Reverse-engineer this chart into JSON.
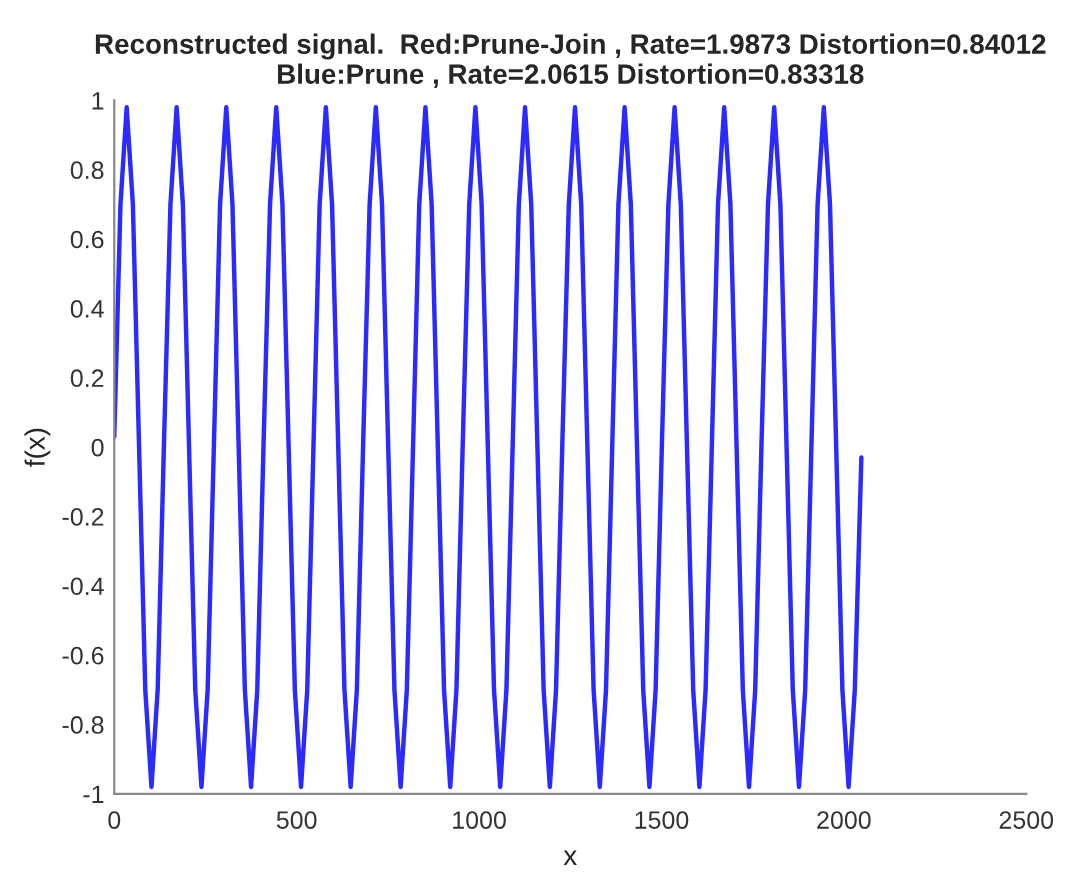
{
  "chart_data": {
    "type": "line",
    "title": "Reconstructed signal.  Red:Prune-Join , Rate=1.9873 Distortion=0.84012\nBlue:Prune , Rate=2.0615 Distortion=0.83318",
    "xlabel": "x",
    "ylabel": "f(x)",
    "xlim": [
      0,
      2500
    ],
    "xticks": [
      0,
      500,
      1000,
      1500,
      2000,
      2500
    ],
    "ylim": [
      -1,
      1
    ],
    "yticks": [
      -1,
      -0.8,
      -0.6,
      -0.4,
      -0.2,
      0,
      0.2,
      0.4,
      0.6,
      0.8,
      1
    ],
    "grid": false,
    "series": [
      {
        "color": "#2b2bff",
        "x": [
          0,
          17,
          34,
          51,
          68,
          85,
          102,
          119,
          136,
          154,
          171,
          188,
          205,
          222,
          239,
          256,
          273,
          290,
          307,
          324,
          341,
          358,
          375,
          392,
          409,
          427,
          444,
          461,
          478,
          495,
          512,
          529,
          546,
          563,
          580,
          597,
          614,
          631,
          648,
          665,
          682,
          700,
          717,
          734,
          751,
          768,
          785,
          802,
          819,
          836,
          853,
          870,
          887,
          904,
          921,
          938,
          955,
          973,
          990,
          1007,
          1024,
          1041,
          1058,
          1075,
          1092,
          1109,
          1126,
          1143,
          1160,
          1177,
          1194,
          1211,
          1228,
          1246,
          1263,
          1280,
          1297,
          1314,
          1331,
          1348,
          1365,
          1382,
          1399,
          1416,
          1433,
          1450,
          1467,
          1484,
          1501,
          1519,
          1536,
          1553,
          1570,
          1587,
          1604,
          1621,
          1638,
          1655,
          1672,
          1689,
          1706,
          1723,
          1740,
          1757,
          1774,
          1792,
          1809,
          1826,
          1843,
          1860,
          1877,
          1894,
          1911,
          1928,
          1945,
          1962,
          1979,
          1996,
          2013,
          2030,
          2048
        ],
        "values": [
          0.03,
          0.7,
          0.98,
          0.7,
          0,
          -0.7,
          -0.98,
          -0.7,
          0,
          0.7,
          0.98,
          0.7,
          0,
          -0.7,
          -0.98,
          -0.7,
          0,
          0.7,
          0.98,
          0.7,
          0,
          -0.7,
          -0.98,
          -0.7,
          0,
          0.7,
          0.98,
          0.7,
          0,
          -0.7,
          -0.98,
          -0.7,
          0,
          0.7,
          0.98,
          0.7,
          0,
          -0.7,
          -0.98,
          -0.7,
          0,
          0.7,
          0.98,
          0.7,
          0,
          -0.7,
          -0.98,
          -0.7,
          0,
          0.7,
          0.98,
          0.7,
          0,
          -0.7,
          -0.98,
          -0.7,
          0,
          0.7,
          0.98,
          0.7,
          0,
          -0.7,
          -0.98,
          -0.7,
          0,
          0.7,
          0.98,
          0.7,
          0,
          -0.7,
          -0.98,
          -0.7,
          0,
          0.7,
          0.98,
          0.7,
          0,
          -0.7,
          -0.98,
          -0.7,
          0,
          0.7,
          0.98,
          0.7,
          0,
          -0.7,
          -0.98,
          -0.7,
          0,
          0.7,
          0.98,
          0.7,
          0,
          -0.7,
          -0.98,
          -0.7,
          0,
          0.7,
          0.98,
          0.7,
          0,
          -0.7,
          -0.98,
          -0.7,
          0,
          0.7,
          0.98,
          0.7,
          0,
          -0.7,
          -0.98,
          -0.7,
          0,
          0.7,
          0.98,
          0.7,
          0,
          -0.7,
          -0.98,
          -0.7,
          -0.03
        ]
      }
    ]
  }
}
